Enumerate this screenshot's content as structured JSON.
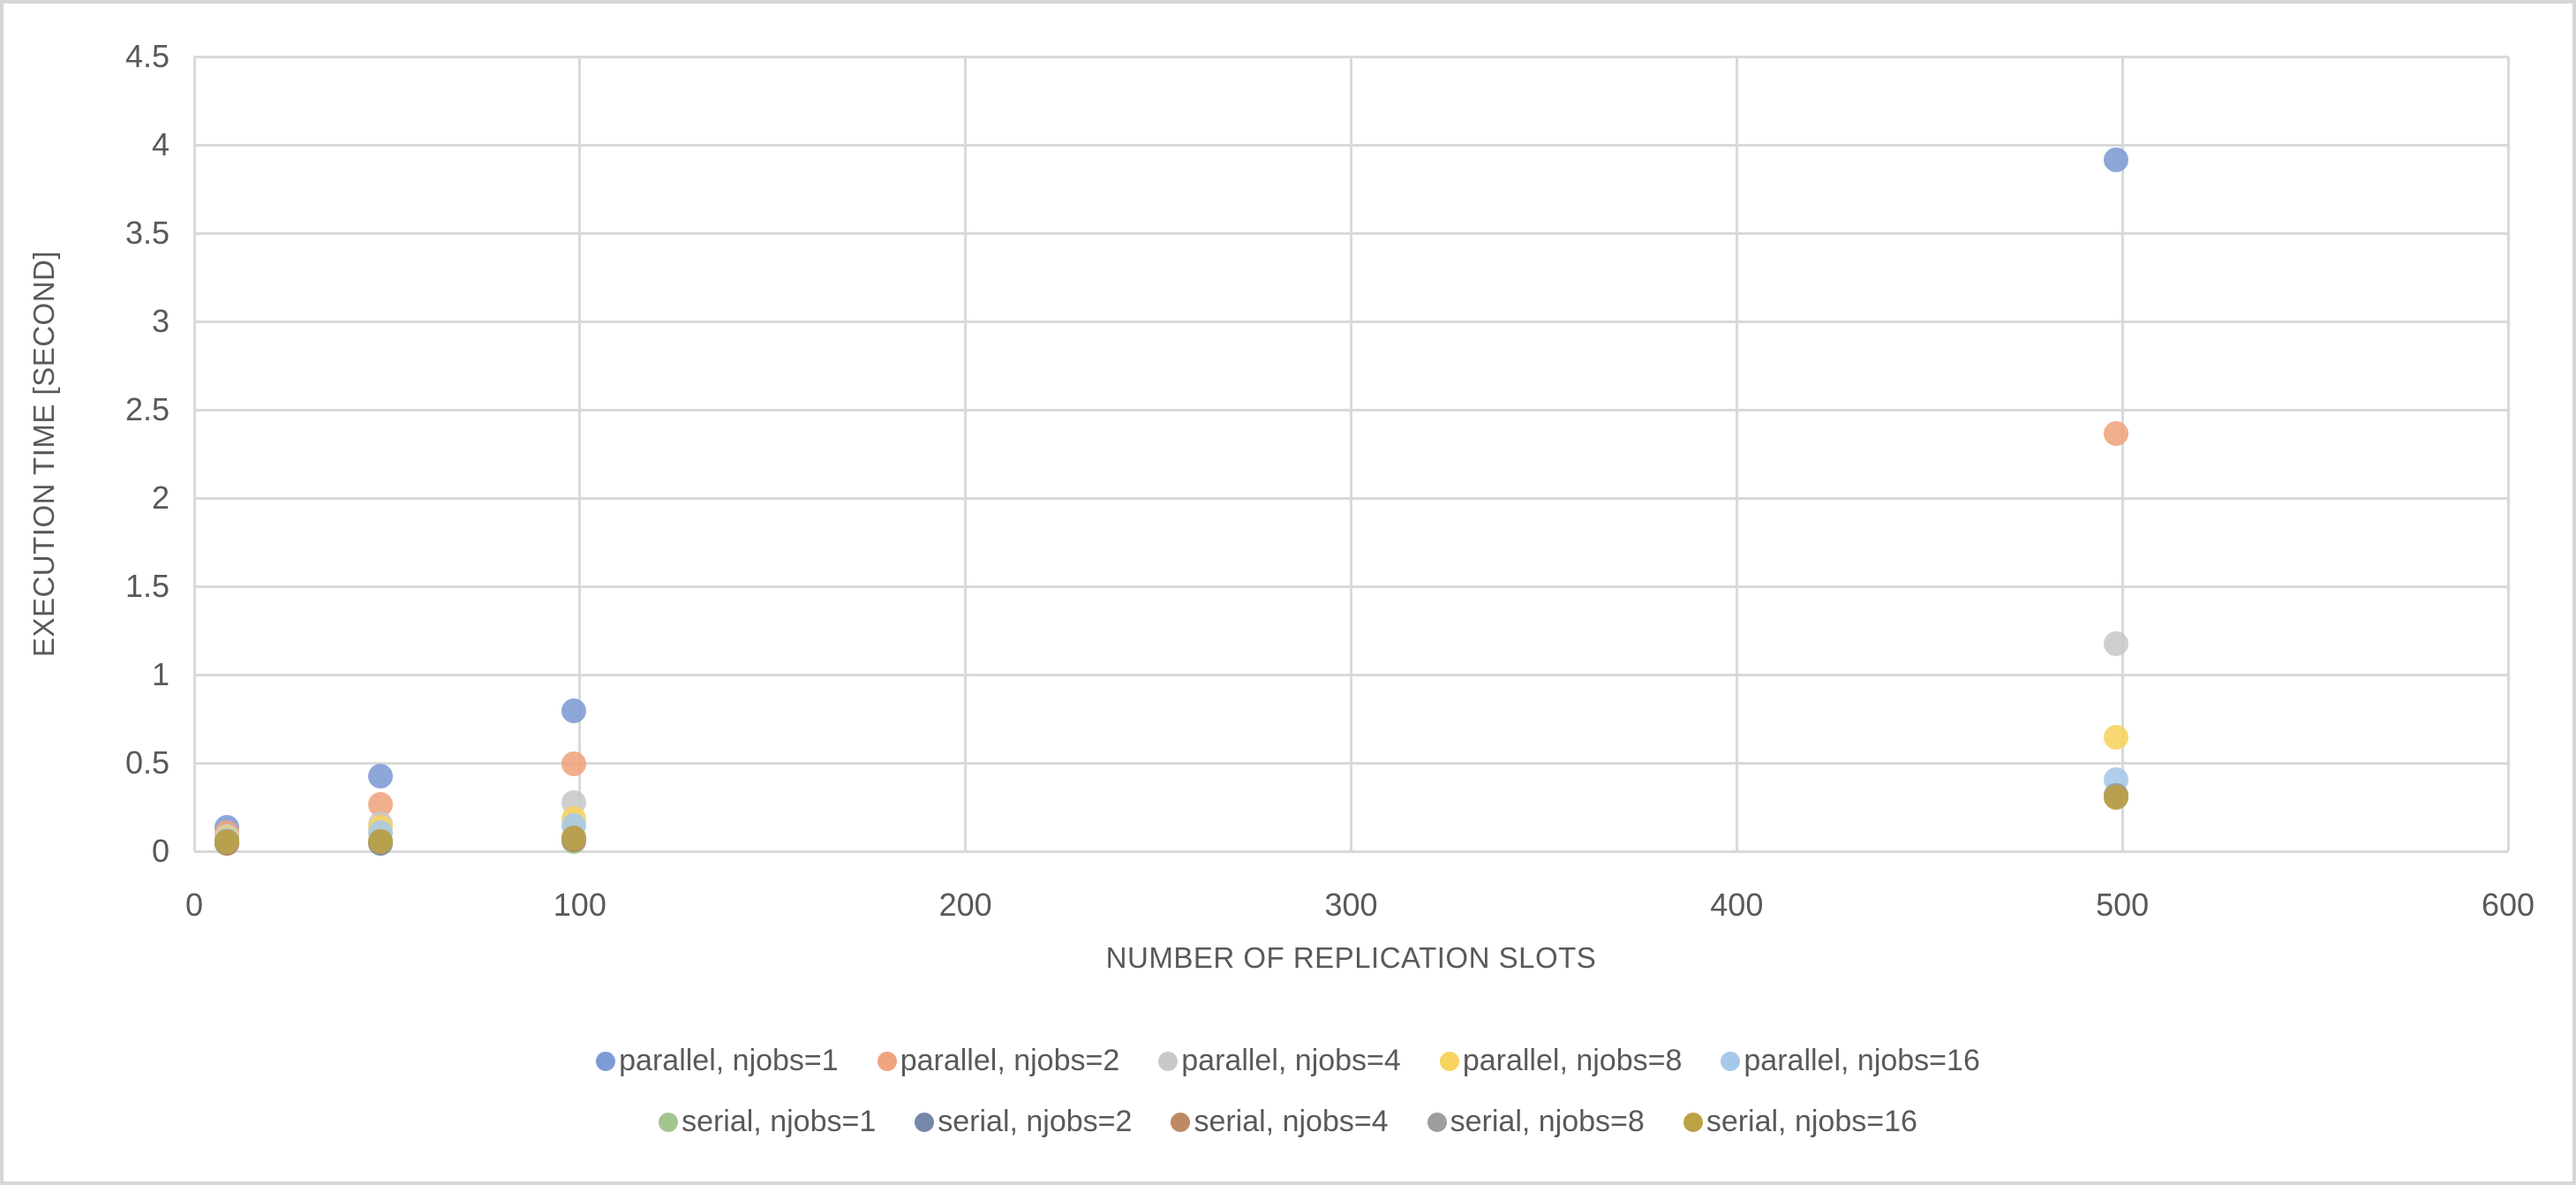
{
  "page": {
    "background_color": "#FFFFFF",
    "frame_border_color": "#D6D6D6"
  },
  "chart_data": {
    "type": "scatter",
    "title": "",
    "xlabel": "NUMBER OF REPLICATION SLOTS",
    "ylabel": "EXECUTION TIME [SECOND]",
    "xlim": [
      0,
      600
    ],
    "ylim": [
      0,
      4.5
    ],
    "x_ticks": [
      0,
      100,
      200,
      300,
      400,
      500,
      600
    ],
    "x_tick_labels": [
      "0",
      "100",
      "200",
      "300",
      "400",
      "500",
      "600"
    ],
    "y_ticks": [
      0,
      0.5,
      1,
      1.5,
      2,
      2.5,
      3,
      3.5,
      4,
      4.5
    ],
    "y_tick_labels": [
      "0",
      "0.5",
      "1",
      "1.5",
      "2",
      "2.5",
      "3",
      "3.5",
      "4",
      "4.5"
    ],
    "grid": true,
    "gridline_color": "#D9D9D9",
    "axis_text_color": "#595959",
    "legend_position": "bottom",
    "marker_style": "donut-circle",
    "x": [
      10,
      50,
      100,
      500
    ],
    "series": [
      {
        "name": "parallel, njobs=1",
        "group": "parallel",
        "color": "#7E9CD4",
        "values": [
          0.1,
          0.39,
          0.76,
          3.88
        ]
      },
      {
        "name": "parallel, njobs=2",
        "group": "parallel",
        "color": "#F0A47E",
        "values": [
          0.07,
          0.23,
          0.46,
          2.33
        ]
      },
      {
        "name": "parallel, njobs=4",
        "group": "parallel",
        "color": "#C9C9C9",
        "values": [
          0.05,
          0.12,
          0.24,
          1.14
        ]
      },
      {
        "name": "parallel, njobs=8",
        "group": "parallel",
        "color": "#F8D35E",
        "values": [
          0.04,
          0.1,
          0.15,
          0.61
        ]
      },
      {
        "name": "parallel, njobs=16",
        "group": "parallel",
        "color": "#A6C9EA",
        "values": [
          0.03,
          0.07,
          0.11,
          0.37
        ]
      },
      {
        "name": "serial, njobs=1",
        "group": "serial",
        "color": "#A2C58D",
        "values": [
          0.01,
          0.01,
          0.02,
          0.27
        ]
      },
      {
        "name": "serial, njobs=2",
        "group": "serial",
        "color": "#7787A9",
        "values": [
          0.01,
          0.01,
          0.03,
          0.28
        ]
      },
      {
        "name": "serial, njobs=4",
        "group": "serial",
        "color": "#BE8A62",
        "values": [
          0.01,
          0.02,
          0.03,
          0.28
        ]
      },
      {
        "name": "serial, njobs=8",
        "group": "serial",
        "color": "#9E9E9E",
        "values": [
          0.02,
          0.02,
          0.04,
          0.28
        ]
      },
      {
        "name": "serial, njobs=16",
        "group": "serial",
        "color": "#BCA244",
        "values": [
          0.02,
          0.02,
          0.04,
          0.27
        ]
      }
    ],
    "legend_rows": [
      [
        "parallel, njobs=1",
        "parallel, njobs=2",
        "parallel, njobs=4",
        "parallel, njobs=8",
        "parallel, njobs=16"
      ],
      [
        "serial, njobs=1",
        "serial, njobs=2",
        "serial, njobs=4",
        "serial, njobs=8",
        "serial, njobs=16"
      ]
    ]
  }
}
